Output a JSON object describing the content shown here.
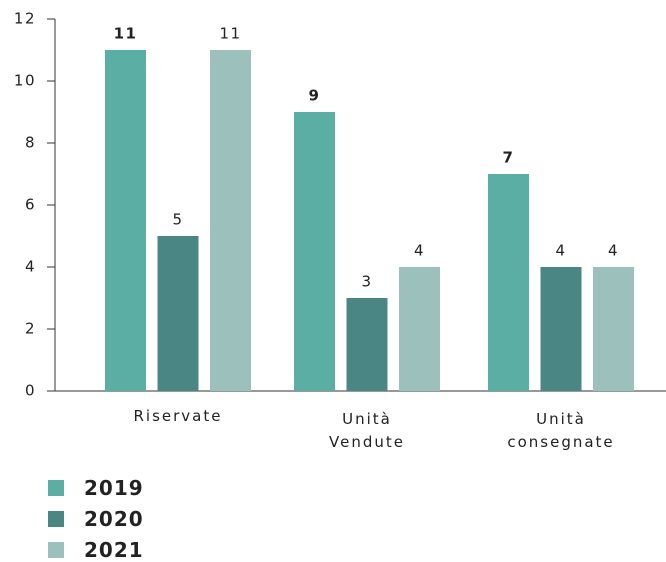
{
  "chart_data": {
    "type": "bar",
    "categories": [
      "Riservate",
      "Unità Vendute",
      "Unità consegnate"
    ],
    "series": [
      {
        "name": "2019",
        "color": "#5aaea3",
        "values": [
          11,
          9,
          7
        ]
      },
      {
        "name": "2020",
        "color": "#4a8784",
        "values": [
          5,
          3,
          4
        ]
      },
      {
        "name": "2021",
        "color": "#9cc0bc",
        "values": [
          11,
          4,
          4
        ]
      }
    ],
    "ylim": [
      0,
      12
    ],
    "yticks": [
      0,
      2,
      4,
      6,
      8,
      10,
      12
    ],
    "grid": false
  }
}
